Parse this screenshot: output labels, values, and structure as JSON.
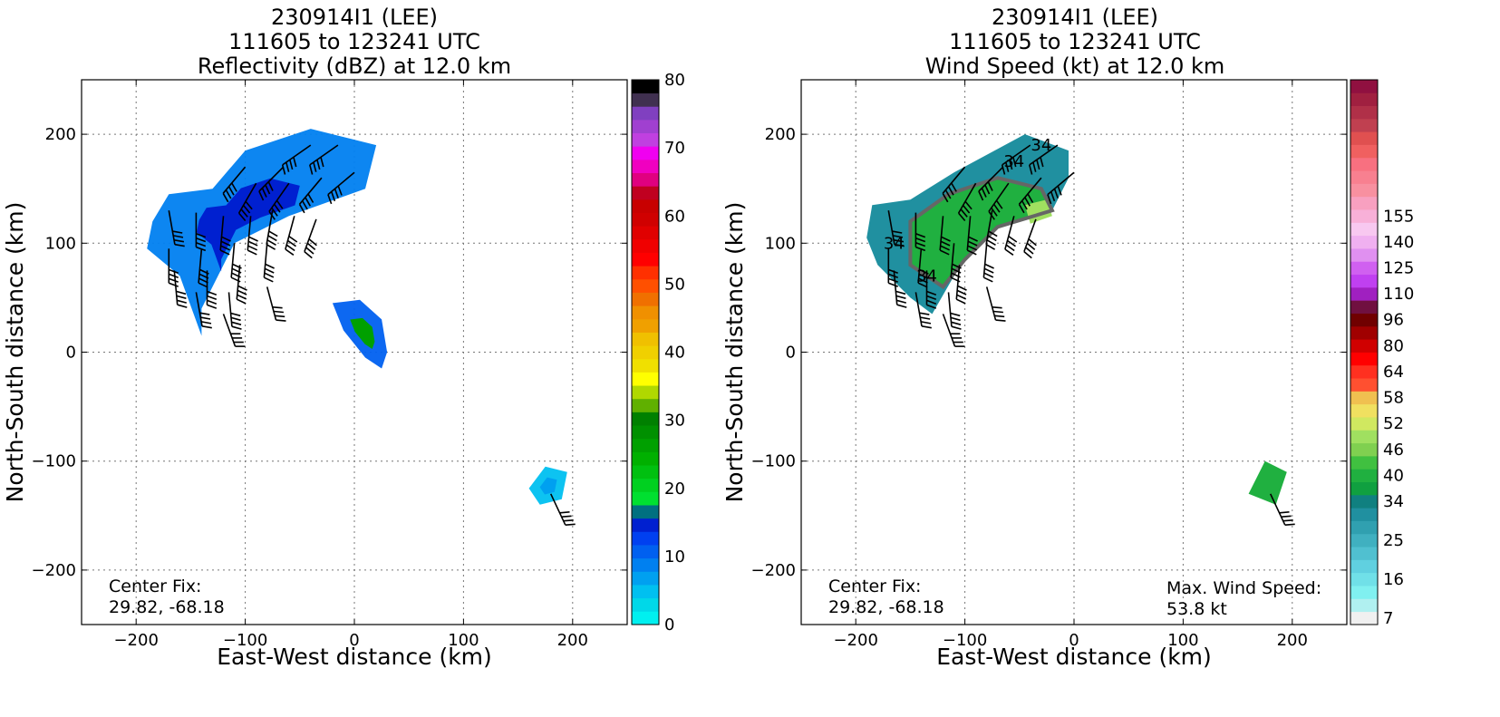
{
  "panels": [
    {
      "id": "reflectivity",
      "title_lines": [
        "230914I1 (LEE)",
        "111605 to 123241 UTC",
        "Reflectivity (dBZ) at 12.0 km"
      ],
      "xlabel": "East-West distance (km)",
      "ylabel": "North-South distance (km)",
      "center_fix": [
        "Center Fix:",
        "29.82, -68.18"
      ],
      "max_wind": null,
      "colorbar": {
        "min": 0,
        "max": 80,
        "ticks": [
          0,
          10,
          20,
          30,
          40,
          50,
          60,
          70,
          80
        ],
        "tick_labels": [
          "0",
          "10",
          "20",
          "30",
          "40",
          "50",
          "60",
          "70",
          "80"
        ],
        "colors": [
          "#00f0f0",
          "#00d8e8",
          "#00c0f0",
          "#00a0f0",
          "#0080f0",
          "#0060f0",
          "#0040f0",
          "#0020d0",
          "#007080",
          "#00e030",
          "#00d020",
          "#00c010",
          "#00b000",
          "#00a000",
          "#009000",
          "#008000",
          "#60b000",
          "#b0d800",
          "#ffff00",
          "#f0e000",
          "#f0d000",
          "#f0c000",
          "#f0a000",
          "#f09000",
          "#f07000",
          "#ff5000",
          "#ff3000",
          "#ff0000",
          "#f00000",
          "#e00000",
          "#d00000",
          "#c80000",
          "#c00020",
          "#e00080",
          "#f000c0",
          "#f000f0",
          "#c040e0",
          "#a040d0",
          "#8040c0",
          "#403050",
          "#000000"
        ]
      }
    },
    {
      "id": "windspeed",
      "title_lines": [
        "230914I1 (LEE)",
        "111605 to 123241 UTC",
        "Wind Speed (kt) at 12.0 km"
      ],
      "xlabel": "East-West distance (km)",
      "ylabel": "North-South distance (km)",
      "center_fix": [
        "Center Fix:",
        "29.82, -68.18"
      ],
      "max_wind": [
        "Max. Wind Speed:",
        "53.8 kt"
      ],
      "contour_label": "34",
      "colorbar": {
        "tick_labels": [
          "7",
          "16",
          "25",
          "34",
          "40",
          "46",
          "52",
          "58",
          "64",
          "80",
          "96",
          "110",
          "125",
          "140",
          "155"
        ],
        "tick_bins": [
          0,
          3,
          6,
          9,
          11,
          13,
          15,
          17,
          19,
          21,
          23,
          25,
          27,
          29,
          31
        ],
        "colors": [
          "#f0f0f0",
          "#b0f0f0",
          "#80f0f0",
          "#70e0e8",
          "#60d0e0",
          "#50c0d0",
          "#40b0c0",
          "#30a0b0",
          "#2090a0",
          "#108080",
          "#10a040",
          "#20b040",
          "#40c040",
          "#80d050",
          "#a0e060",
          "#d0e860",
          "#f0e060",
          "#f0c050",
          "#ff5030",
          "#ff3020",
          "#ff0000",
          "#d00000",
          "#a00000",
          "#700000",
          "#701040",
          "#a020c0",
          "#c040f0",
          "#d060f0",
          "#e090f0",
          "#f0b0f0",
          "#f8c8f0",
          "#f8b0d8",
          "#f8a0c0",
          "#f890a0",
          "#f88090",
          "#f87080",
          "#f06060",
          "#e05050",
          "#c04050",
          "#b03048",
          "#a02040",
          "#901040"
        ]
      }
    }
  ],
  "x_ticks": [
    -200,
    -100,
    0,
    100,
    200
  ],
  "y_ticks": [
    -200,
    -100,
    0,
    100,
    200
  ],
  "xlim": [
    -250,
    250
  ],
  "ylim": [
    -250,
    250
  ],
  "grid": true,
  "chart_data": [
    {
      "type": "heatmap",
      "title": "230914I1 (LEE) 111605 to 123241 UTC Reflectivity (dBZ) at 12.0 km",
      "xlabel": "East-West distance (km)",
      "ylabel": "North-South distance (km)",
      "xlim": [
        -250,
        250
      ],
      "ylim": [
        -250,
        250
      ],
      "x_ticks": [
        -200,
        -100,
        0,
        100,
        200
      ],
      "y_ticks": [
        -200,
        -100,
        0,
        100,
        200
      ],
      "grid": true,
      "colorbar_label_range": [
        0,
        80
      ],
      "regions": [
        {
          "name": "main_band",
          "outline": [
            [
              -170,
              145
            ],
            [
              -130,
              150
            ],
            [
              -100,
              185
            ],
            [
              -40,
              205
            ],
            [
              20,
              190
            ],
            [
              10,
              150
            ],
            [
              -60,
              125
            ],
            [
              -110,
              100
            ],
            [
              -140,
              40
            ],
            [
              -140,
              15
            ],
            [
              -160,
              70
            ],
            [
              -190,
              95
            ],
            [
              -185,
              120
            ]
          ],
          "dbz_typical": 7,
          "dbz_max": 14
        },
        {
          "name": "core_south",
          "outline": [
            [
              -20,
              45
            ],
            [
              5,
              48
            ],
            [
              25,
              30
            ],
            [
              30,
              0
            ],
            [
              25,
              -15
            ],
            [
              10,
              -5
            ],
            [
              -10,
              20
            ]
          ],
          "dbz_typical": 10,
          "dbz_max": 26
        },
        {
          "name": "small_east",
          "outline": [
            [
              160,
              -125
            ],
            [
              175,
              -105
            ],
            [
              195,
              -110
            ],
            [
              190,
              -135
            ],
            [
              170,
              -140
            ]
          ],
          "dbz_typical": 3,
          "dbz_max": 5
        }
      ],
      "wind_barbs": [
        {
          "x": -170,
          "y": 130,
          "dir": 80
        },
        {
          "x": -145,
          "y": 128,
          "dir": 90
        },
        {
          "x": -120,
          "y": 125,
          "dir": 95
        },
        {
          "x": -95,
          "y": 125,
          "dir": 95
        },
        {
          "x": -75,
          "y": 130,
          "dir": 100
        },
        {
          "x": -55,
          "y": 125,
          "dir": 105
        },
        {
          "x": -35,
          "y": 122,
          "dir": 110
        },
        {
          "x": -170,
          "y": 95,
          "dir": 90
        },
        {
          "x": -140,
          "y": 95,
          "dir": 95
        },
        {
          "x": -110,
          "y": 100,
          "dir": 95
        },
        {
          "x": -80,
          "y": 100,
          "dir": 95
        },
        {
          "x": -165,
          "y": 75,
          "dir": 85
        },
        {
          "x": -135,
          "y": 75,
          "dir": 90
        },
        {
          "x": -105,
          "y": 80,
          "dir": 95
        },
        {
          "x": -145,
          "y": 55,
          "dir": 80
        },
        {
          "x": -115,
          "y": 55,
          "dir": 85
        },
        {
          "x": -120,
          "y": 35,
          "dir": 70
        },
        {
          "x": -80,
          "y": 60,
          "dir": 75
        },
        {
          "x": -90,
          "y": 155,
          "dir": 120
        },
        {
          "x": -60,
          "y": 155,
          "dir": 125
        },
        {
          "x": -30,
          "y": 160,
          "dir": 130
        },
        {
          "x": -100,
          "y": 170,
          "dir": 130
        },
        {
          "x": -65,
          "y": 170,
          "dir": 135
        },
        {
          "x": -40,
          "y": 190,
          "dir": 145
        },
        {
          "x": -15,
          "y": 190,
          "dir": 145
        },
        {
          "x": 0,
          "y": 165,
          "dir": 140
        },
        {
          "x": 180,
          "y": -130,
          "dir": 65
        }
      ]
    },
    {
      "type": "heatmap",
      "title": "230914I1 (LEE) 111605 to 123241 UTC Wind Speed (kt) at 12.0 km",
      "xlabel": "East-West distance (km)",
      "ylabel": "North-South distance (km)",
      "xlim": [
        -250,
        250
      ],
      "ylim": [
        -250,
        250
      ],
      "x_ticks": [
        -200,
        -100,
        0,
        100,
        200
      ],
      "y_ticks": [
        -200,
        -100,
        0,
        100,
        200
      ],
      "grid": true,
      "max_wind_speed_kt": 53.8,
      "contour_level_kt": 34,
      "regions": [
        {
          "name": "outer_area",
          "outline": [
            [
              -185,
              135
            ],
            [
              -150,
              140
            ],
            [
              -110,
              165
            ],
            [
              -45,
              200
            ],
            [
              -5,
              185
            ],
            [
              -5,
              160
            ],
            [
              -20,
              130
            ],
            [
              -90,
              115
            ],
            [
              -110,
              70
            ],
            [
              -130,
              35
            ],
            [
              -150,
              50
            ],
            [
              -180,
              80
            ],
            [
              -190,
              105
            ]
          ],
          "speed_typical": 30
        },
        {
          "name": "inner_strong",
          "outline": [
            [
              -150,
              120
            ],
            [
              -115,
              145
            ],
            [
              -70,
              160
            ],
            [
              -30,
              150
            ],
            [
              -20,
              130
            ],
            [
              -70,
              115
            ],
            [
              -100,
              85
            ],
            [
              -120,
              60
            ],
            [
              -150,
              80
            ]
          ],
          "speed_typical": 40,
          "speed_max": 53.8
        },
        {
          "name": "max_spot",
          "outline": [
            [
              -45,
              135
            ],
            [
              -25,
              140
            ],
            [
              -20,
              125
            ],
            [
              -40,
              118
            ]
          ],
          "speed_typical": 50
        },
        {
          "name": "small_east",
          "outline": [
            [
              160,
              -130
            ],
            [
              175,
              -100
            ],
            [
              195,
              -110
            ],
            [
              185,
              -140
            ]
          ],
          "speed_typical": 40
        }
      ],
      "wind_barbs_same_as_reflectivity": true
    }
  ]
}
